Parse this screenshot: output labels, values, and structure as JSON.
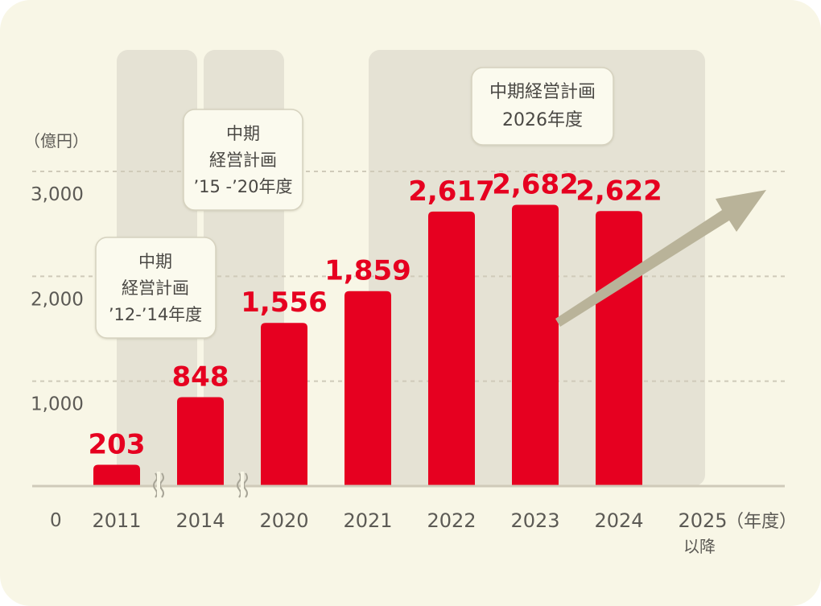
{
  "chart_data": {
    "type": "bar",
    "unit": "（億円）",
    "categories": [
      "2011",
      "2014",
      "2020",
      "2021",
      "2022",
      "2023",
      "2024",
      "2025"
    ],
    "values": [
      203,
      848,
      1556,
      1859,
      2617,
      2682,
      2622,
      null
    ],
    "value_labels": [
      "203",
      "848",
      "1,556",
      "1,859",
      "2,617",
      "2,682",
      "2,622",
      ""
    ],
    "y_ticks": [
      "0",
      "1,000",
      "2,000",
      "3,000"
    ],
    "ylim": [
      0,
      3000
    ],
    "x_unit": "（年度）",
    "last_category_suffix": "以降",
    "bar_color": "#e60020",
    "arrow_color": "#b9b399",
    "plan_bands": [
      {
        "lines": [
          "中期",
          "経営計画",
          "’12-’14年度"
        ]
      },
      {
        "lines": [
          "中期",
          "経営計画",
          "’15 -’20年度"
        ]
      },
      {
        "lines": [
          "中期経営計画",
          "2026年度"
        ]
      }
    ]
  }
}
